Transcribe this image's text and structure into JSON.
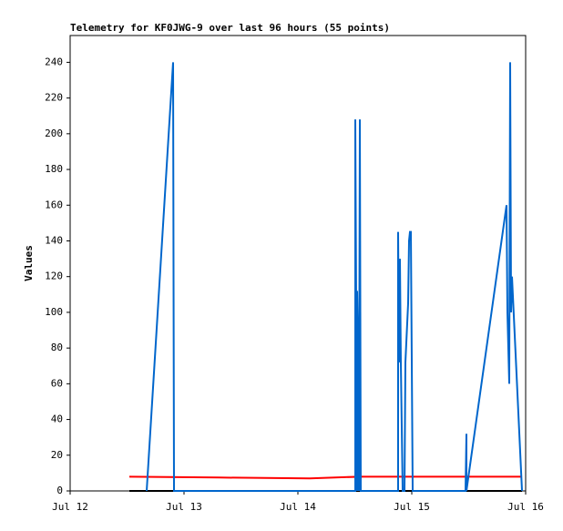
{
  "chart_data": {
    "type": "line",
    "title": "Telemetry for KF0JWG-9 over last 96 hours (55 points)",
    "ylabel": "Values",
    "xlim": [
      0,
      4
    ],
    "xticks": [
      {
        "value": 0,
        "label": "Jul 12"
      },
      {
        "value": 1,
        "label": "Jul 13"
      },
      {
        "value": 2,
        "label": "Jul 14"
      },
      {
        "value": 3,
        "label": "Jul 15"
      },
      {
        "value": 4,
        "label": "Jul 16"
      }
    ],
    "ylim": [
      0,
      255
    ],
    "yticks": [
      0,
      20,
      40,
      60,
      80,
      100,
      120,
      140,
      160,
      180,
      200,
      220,
      240
    ],
    "series": [
      {
        "color": "#000000",
        "x": [
          0.52,
          3.968
        ],
        "values": [
          0,
          0
        ]
      },
      {
        "color": "#ff0000",
        "x": [
          0.52,
          1.304,
          2.104,
          2.544,
          3.968
        ],
        "values": [
          8,
          7.5,
          7,
          8,
          8
        ]
      },
      {
        "color": "#0066cc",
        "x": [
          0.672,
          0.904,
          0.912,
          2.504,
          2.504,
          2.52,
          2.52,
          2.528,
          2.536,
          2.544,
          2.552,
          2.88,
          2.88,
          2.888,
          2.896,
          2.904,
          2.92,
          2.936,
          2.944,
          2.968,
          2.976,
          2.984,
          2.992,
          3.008,
          3.472,
          3.48,
          3.48,
          3.832,
          3.84,
          3.848,
          3.856,
          3.864,
          3.872,
          3.88,
          3.968
        ],
        "values": [
          0,
          240,
          0,
          0,
          208,
          0,
          112,
          80,
          0,
          208,
          0,
          0,
          145,
          72,
          130,
          72,
          0,
          0,
          72,
          105,
          140,
          145,
          145,
          0,
          0,
          32,
          0,
          160,
          100,
          80,
          60,
          240,
          100,
          120,
          0
        ]
      }
    ]
  }
}
